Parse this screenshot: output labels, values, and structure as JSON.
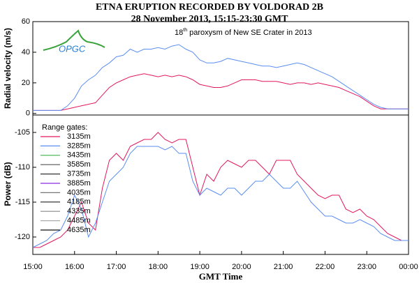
{
  "chart_data": [
    {
      "type": "line",
      "title": "ETNA ERUPTION RECORDED BY VOLDORAD 2B",
      "subtitle": "28 November 2013, 15:15-23:30 GMT",
      "annotation": {
        "number": "18",
        "suffix": "th",
        "text": " paroxysm of New SE Crater in 2013"
      },
      "logo": "OPGC",
      "ylabel": "Radial velocity (m/s)",
      "x": [
        "15:00",
        "15:10",
        "15:20",
        "15:30",
        "15:40",
        "15:50",
        "16:00",
        "16:10",
        "16:20",
        "16:30",
        "16:40",
        "16:50",
        "17:00",
        "17:10",
        "17:20",
        "17:30",
        "17:40",
        "17:50",
        "18:00",
        "18:10",
        "18:20",
        "18:30",
        "18:40",
        "18:50",
        "19:00",
        "19:10",
        "19:20",
        "19:30",
        "19:40",
        "19:50",
        "20:00",
        "20:10",
        "20:20",
        "20:30",
        "20:40",
        "20:50",
        "21:00",
        "21:10",
        "21:20",
        "21:30",
        "21:40",
        "21:50",
        "22:00",
        "22:10",
        "22:20",
        "22:30",
        "22:40",
        "22:50",
        "23:00",
        "23:10",
        "23:20",
        "23:30",
        "23:40",
        "23:50",
        "00:00"
      ],
      "xlim": [
        "15:00",
        "00:00"
      ],
      "ylim": [
        -1,
        60
      ],
      "yticks": [
        0,
        20,
        40,
        60
      ],
      "series": [
        {
          "color": "#e3175f",
          "values": [
            2,
            2,
            2,
            2,
            2,
            3,
            4,
            5,
            6,
            7,
            12,
            17,
            20,
            22,
            24,
            25,
            26,
            25,
            24,
            25,
            24,
            25,
            24,
            22,
            19,
            18,
            17,
            17,
            18,
            20,
            22,
            22,
            22,
            21,
            21,
            21,
            20,
            19,
            20,
            20,
            19,
            20,
            19,
            18,
            17,
            15,
            13,
            11,
            8,
            5,
            3,
            3,
            3,
            3,
            3
          ]
        },
        {
          "color": "#5b8ef2",
          "values": [
            2,
            2,
            2,
            2,
            2,
            5,
            10,
            18,
            22,
            25,
            30,
            33,
            37,
            38,
            42,
            40,
            42,
            42,
            43,
            42,
            44,
            45,
            42,
            40,
            35,
            33,
            33,
            34,
            36,
            35,
            34,
            33,
            32,
            31,
            31,
            30,
            31,
            32,
            33,
            32,
            30,
            28,
            26,
            24,
            21,
            18,
            15,
            12,
            9,
            6,
            4,
            3,
            3,
            3,
            3
          ]
        }
      ]
    },
    {
      "type": "line",
      "ylabel": "Power (dB)",
      "xlabel": "GMT Time",
      "x": [
        "15:00",
        "15:10",
        "15:20",
        "15:30",
        "15:40",
        "15:50",
        "16:00",
        "16:10",
        "16:20",
        "16:30",
        "16:40",
        "16:50",
        "17:00",
        "17:10",
        "17:20",
        "17:30",
        "17:40",
        "17:50",
        "18:00",
        "18:10",
        "18:20",
        "18:30",
        "18:40",
        "18:50",
        "19:00",
        "19:10",
        "19:20",
        "19:30",
        "19:40",
        "19:50",
        "20:00",
        "20:10",
        "20:20",
        "20:30",
        "20:40",
        "20:50",
        "21:00",
        "21:10",
        "21:20",
        "21:30",
        "21:40",
        "21:50",
        "22:00",
        "22:10",
        "22:20",
        "22:30",
        "22:40",
        "22:50",
        "23:00",
        "23:10",
        "23:20",
        "23:30",
        "23:40",
        "23:50",
        "00:00"
      ],
      "xlim": [
        "15:00",
        "00:00"
      ],
      "xticks": [
        "15:00",
        "16:00",
        "17:00",
        "18:00",
        "19:00",
        "20:00",
        "21:00",
        "22:00",
        "23:00",
        "00:00"
      ],
      "ylim": [
        -122.5,
        -102.5
      ],
      "yticks": [
        -105,
        -110,
        -115,
        -120
      ],
      "legend_title": "Range gates:",
      "series": [
        {
          "name": "3135m",
          "color": "#e3175f",
          "values": [
            -121.5,
            -121.5,
            -121,
            -120.5,
            -120,
            -119,
            -117,
            -115,
            -118,
            -119,
            -113,
            -109,
            -108,
            -109,
            -107,
            -106.5,
            -106,
            -106,
            -105,
            -106,
            -106.5,
            -106,
            -106,
            -110,
            -114,
            -111,
            -112,
            -110,
            -109,
            -109.5,
            -110,
            -109,
            -109,
            -110,
            -111,
            -109,
            -109,
            -109,
            -111,
            -112,
            -113,
            -114,
            -114.5,
            -114,
            -114,
            -116,
            -116.5,
            -116,
            -117,
            -117.5,
            -118.5,
            -119.5,
            -120,
            -120.5,
            -120.5
          ]
        },
        {
          "name": "3285m",
          "color": "#5b8ef2",
          "values": [
            -121.5,
            -121,
            -120.5,
            -119.5,
            -119,
            -117,
            -114,
            -116,
            -120,
            -118,
            -115,
            -112,
            -111,
            -110,
            -108,
            -107,
            -107,
            -107,
            -107,
            -107.5,
            -107,
            -108,
            -108,
            -112,
            -114,
            -113,
            -113.5,
            -114,
            -113,
            -113,
            -114,
            -113,
            -112,
            -112,
            -111,
            -112,
            -113,
            -113,
            -112,
            -113.5,
            -115,
            -116,
            -117,
            -117,
            -117.5,
            -118,
            -118,
            -117.5,
            -118,
            -118.5,
            -119.5,
            -120,
            -120.5,
            -120.5,
            -120.5
          ]
        }
      ],
      "other_range_gates": [
        {
          "name": "3435m",
          "color": "#3cb44b"
        },
        {
          "name": "3585m",
          "color": "#555555"
        },
        {
          "name": "3735m",
          "color": "#333333"
        },
        {
          "name": "3885m",
          "color": "#8a2be2"
        },
        {
          "name": "4035m",
          "color": "#777777"
        },
        {
          "name": "4185m",
          "color": "#222222"
        },
        {
          "name": "4335m",
          "color": "#888888"
        },
        {
          "name": "4485m",
          "color": "#aaaaaa"
        },
        {
          "name": "4635m",
          "color": "#111111"
        }
      ]
    }
  ]
}
